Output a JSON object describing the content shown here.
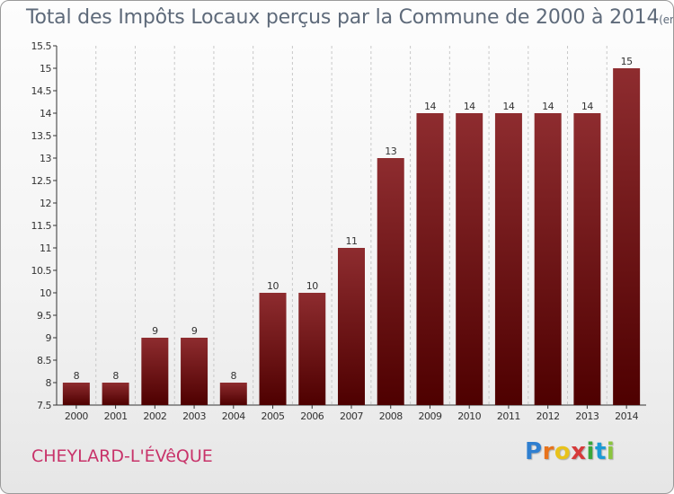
{
  "title": {
    "main": "Total des Impôts Locaux perçus par la Commune de 2000 à 2014",
    "unit": "(en milliers d'€)"
  },
  "commune": "CHEYLARD-L'ÉVêQUE",
  "logo": {
    "letters": [
      "P",
      "r",
      "o",
      "x",
      "i",
      "t",
      "i"
    ],
    "colors": [
      "#2f7fd0",
      "#e8731b",
      "#e8c21b",
      "#d63a3a",
      "#3aa63a",
      "#1b9ad6",
      "#8bc53f"
    ]
  },
  "colors": {
    "bar_top": "#8e2c2f",
    "bar_bottom": "#4e0000",
    "axis": "#333333",
    "grid": "#c8c8c8",
    "title": "#5e6a7a",
    "commune": "#c8336a"
  },
  "chart_data": {
    "type": "bar",
    "title": "Total des Impôts Locaux perçus par la Commune de 2000 à 2014",
    "xlabel": "",
    "ylabel": "",
    "categories": [
      "2000",
      "2001",
      "2002",
      "2003",
      "2004",
      "2005",
      "2006",
      "2007",
      "2008",
      "2009",
      "2010",
      "2011",
      "2012",
      "2013",
      "2014"
    ],
    "values": [
      8,
      8,
      9,
      9,
      8,
      10,
      10,
      11,
      13,
      14,
      14,
      14,
      14,
      14,
      15
    ],
    "labels": [
      "8",
      "8",
      "9",
      "9",
      "8",
      "10",
      "10",
      "11",
      "13",
      "14",
      "14",
      "14",
      "14",
      "14",
      "15"
    ],
    "ylim": [
      7.5,
      15.5
    ],
    "yticks": [
      7.5,
      8,
      8.5,
      9,
      9.5,
      10,
      10.5,
      11,
      11.5,
      12,
      12.5,
      13,
      13.5,
      14,
      14.5,
      15,
      15.5
    ],
    "ytick_labels": [
      "7.5",
      "8",
      "8.5",
      "9",
      "9.5",
      "10",
      "10.5",
      "11",
      "11.5",
      "12",
      "12.5",
      "13",
      "13.5",
      "14",
      "14.5",
      "15",
      "15.5"
    ],
    "grid": true
  }
}
